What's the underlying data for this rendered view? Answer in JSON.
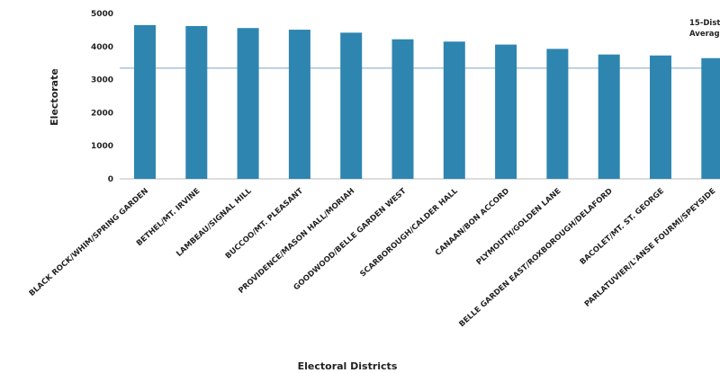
{
  "chart_data": {
    "type": "bar",
    "xlabel": "Electoral Districts",
    "ylabel": "Electorate",
    "ylim": [
      0,
      5000
    ],
    "yticks": [
      0,
      1000,
      2000,
      3000,
      4000,
      5000
    ],
    "grid": false,
    "categories": [
      "BLACK ROCK/WHIM/SPRING GARDEN",
      "BETHEL/MT. IRVINE",
      "LAMBEAU/SIGNAL HILL",
      "BUCCOO/MT. PLEASANT",
      "PROVIDENCE/MASON HALL/MORIAH",
      "GOODWOOD/BELLE GARDEN WEST",
      "SCARBOROUGH/CALDER HALL",
      "CANAAN/BON ACCORD",
      "PLYMOUTH/GOLDEN LANE",
      "BELLE GARDEN EAST/ROXBOROUGH/DELAFORD",
      "BACOLET/MT. ST. GEORGE",
      "PARLATUVIER/L'ANSE FOURMI/SPEYSIDE"
    ],
    "values": [
      4650,
      4620,
      4560,
      4510,
      4420,
      4220,
      4150,
      4060,
      3930,
      3760,
      3730,
      3650
    ],
    "reference_line": {
      "value": 3350,
      "label_line1": "15-Dist",
      "label_line2": "Average"
    },
    "bar_color": "#2e86b0",
    "avg_line_color": "#a9c4d3"
  }
}
